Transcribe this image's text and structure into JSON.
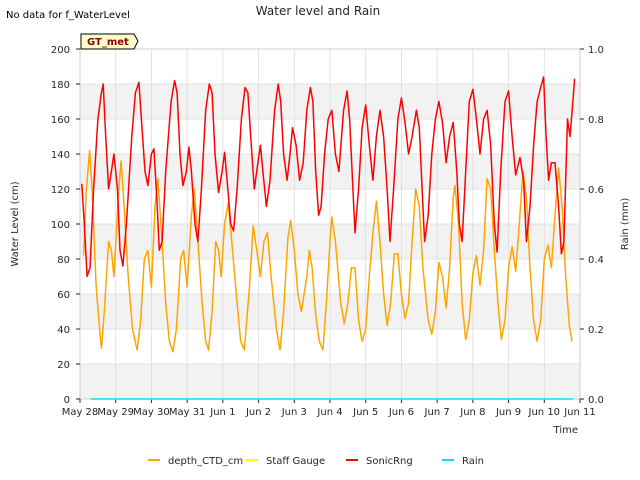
{
  "chart_data": {
    "type": "line",
    "title": "Water level and Rain",
    "annotation": "No data for f_WaterLevel",
    "badge": "GT_met",
    "xlabel": "Time",
    "ylabel_left": "Water Level (cm)",
    "ylabel_right": "Rain (mm)",
    "ylim_left": [
      0,
      200
    ],
    "ylim_right": [
      0.0,
      1.0
    ],
    "yticks_left": [
      "0",
      "20",
      "40",
      "60",
      "80",
      "100",
      "120",
      "140",
      "160",
      "180",
      "200"
    ],
    "yticks_right": [
      "0.0",
      "0.2",
      "0.4",
      "0.6",
      "0.8",
      "1.0"
    ],
    "xlim_days": [
      0,
      14
    ],
    "xticks": [
      "May 28",
      "May 29",
      "May 30",
      "May 31",
      "Jun 1",
      "Jun 2",
      "Jun 3",
      "Jun 4",
      "Jun 5",
      "Jun 6",
      "Jun 7",
      "Jun 8",
      "Jun 9",
      "Jun 10",
      "Jun 11"
    ],
    "grid": true,
    "legend_placement": "bottom",
    "series": [
      {
        "name": "depth_CTD_cm",
        "color": "#FFA500",
        "axis": "left",
        "points": [
          [
            0.1,
            82
          ],
          [
            0.18,
            120
          ],
          [
            0.27,
            142
          ],
          [
            0.34,
            120
          ],
          [
            0.45,
            65
          ],
          [
            0.55,
            40
          ],
          [
            0.6,
            29
          ],
          [
            0.68,
            50
          ],
          [
            0.8,
            90
          ],
          [
            0.88,
            85
          ],
          [
            0.95,
            70
          ],
          [
            1.08,
            118
          ],
          [
            1.15,
            136
          ],
          [
            1.22,
            115
          ],
          [
            1.35,
            70
          ],
          [
            1.47,
            40
          ],
          [
            1.6,
            28
          ],
          [
            1.7,
            45
          ],
          [
            1.8,
            80
          ],
          [
            1.9,
            85
          ],
          [
            2.0,
            64
          ],
          [
            2.1,
            110
          ],
          [
            2.18,
            126
          ],
          [
            2.3,
            90
          ],
          [
            2.4,
            55
          ],
          [
            2.5,
            33
          ],
          [
            2.6,
            27
          ],
          [
            2.7,
            40
          ],
          [
            2.82,
            80
          ],
          [
            2.9,
            85
          ],
          [
            3.0,
            64
          ],
          [
            3.12,
            105
          ],
          [
            3.2,
            120
          ],
          [
            3.3,
            90
          ],
          [
            3.42,
            55
          ],
          [
            3.52,
            33
          ],
          [
            3.6,
            28
          ],
          [
            3.7,
            50
          ],
          [
            3.8,
            90
          ],
          [
            3.88,
            85
          ],
          [
            3.95,
            70
          ],
          [
            4.05,
            100
          ],
          [
            4.15,
            112
          ],
          [
            4.25,
            90
          ],
          [
            4.4,
            55
          ],
          [
            4.5,
            33
          ],
          [
            4.6,
            28
          ],
          [
            4.75,
            65
          ],
          [
            4.85,
            99
          ],
          [
            4.95,
            85
          ],
          [
            5.05,
            70
          ],
          [
            5.15,
            90
          ],
          [
            5.25,
            95
          ],
          [
            5.35,
            70
          ],
          [
            5.5,
            40
          ],
          [
            5.6,
            28
          ],
          [
            5.7,
            50
          ],
          [
            5.82,
            92
          ],
          [
            5.9,
            102
          ],
          [
            6.0,
            85
          ],
          [
            6.1,
            60
          ],
          [
            6.2,
            50
          ],
          [
            6.35,
            70
          ],
          [
            6.42,
            85
          ],
          [
            6.5,
            75
          ],
          [
            6.6,
            48
          ],
          [
            6.7,
            33
          ],
          [
            6.8,
            28
          ],
          [
            6.9,
            55
          ],
          [
            7.0,
            90
          ],
          [
            7.05,
            104
          ],
          [
            7.15,
            90
          ],
          [
            7.3,
            55
          ],
          [
            7.4,
            43
          ],
          [
            7.5,
            55
          ],
          [
            7.6,
            75
          ],
          [
            7.7,
            75
          ],
          [
            7.8,
            45
          ],
          [
            7.9,
            33
          ],
          [
            8.0,
            40
          ],
          [
            8.1,
            70
          ],
          [
            8.2,
            95
          ],
          [
            8.3,
            113
          ],
          [
            8.4,
            90
          ],
          [
            8.5,
            60
          ],
          [
            8.6,
            42
          ],
          [
            8.7,
            55
          ],
          [
            8.8,
            83
          ],
          [
            8.9,
            83
          ],
          [
            9.0,
            60
          ],
          [
            9.1,
            46
          ],
          [
            9.2,
            55
          ],
          [
            9.3,
            90
          ],
          [
            9.4,
            120
          ],
          [
            9.5,
            110
          ],
          [
            9.6,
            75
          ],
          [
            9.75,
            45
          ],
          [
            9.85,
            37
          ],
          [
            9.95,
            50
          ],
          [
            10.05,
            78
          ],
          [
            10.15,
            70
          ],
          [
            10.25,
            52
          ],
          [
            10.35,
            75
          ],
          [
            10.45,
            115
          ],
          [
            10.5,
            122
          ],
          [
            10.6,
            100
          ],
          [
            10.7,
            55
          ],
          [
            10.8,
            34
          ],
          [
            10.9,
            45
          ],
          [
            11.0,
            72
          ],
          [
            11.1,
            82
          ],
          [
            11.2,
            65
          ],
          [
            11.3,
            85
          ],
          [
            11.4,
            126
          ],
          [
            11.5,
            120
          ],
          [
            11.6,
            85
          ],
          [
            11.7,
            55
          ],
          [
            11.8,
            34
          ],
          [
            11.9,
            45
          ],
          [
            12.0,
            75
          ],
          [
            12.1,
            87
          ],
          [
            12.2,
            73
          ],
          [
            12.3,
            100
          ],
          [
            12.4,
            130
          ],
          [
            12.5,
            115
          ],
          [
            12.6,
            75
          ],
          [
            12.7,
            45
          ],
          [
            12.8,
            33
          ],
          [
            12.9,
            45
          ],
          [
            13.0,
            80
          ],
          [
            13.1,
            88
          ],
          [
            13.2,
            75
          ],
          [
            13.3,
            105
          ],
          [
            13.4,
            132
          ],
          [
            13.5,
            110
          ],
          [
            13.6,
            70
          ],
          [
            13.7,
            42
          ],
          [
            13.78,
            33
          ]
        ]
      },
      {
        "name": "Staff Gauge",
        "color": "#FFFF00",
        "axis": "left",
        "points": []
      },
      {
        "name": "SonicRng",
        "color": "#FF0000",
        "axis": "left",
        "points": [
          [
            0.05,
            123
          ],
          [
            0.12,
            100
          ],
          [
            0.2,
            70
          ],
          [
            0.28,
            75
          ],
          [
            0.38,
            120
          ],
          [
            0.5,
            160
          ],
          [
            0.6,
            175
          ],
          [
            0.65,
            180
          ],
          [
            0.72,
            150
          ],
          [
            0.8,
            120
          ],
          [
            0.88,
            130
          ],
          [
            0.95,
            140
          ],
          [
            1.05,
            120
          ],
          [
            1.12,
            85
          ],
          [
            1.2,
            76
          ],
          [
            1.3,
            100
          ],
          [
            1.45,
            150
          ],
          [
            1.55,
            175
          ],
          [
            1.65,
            181
          ],
          [
            1.72,
            160
          ],
          [
            1.82,
            130
          ],
          [
            1.9,
            122
          ],
          [
            2.0,
            140
          ],
          [
            2.07,
            143
          ],
          [
            2.15,
            115
          ],
          [
            2.22,
            85
          ],
          [
            2.3,
            90
          ],
          [
            2.4,
            130
          ],
          [
            2.55,
            170
          ],
          [
            2.65,
            182
          ],
          [
            2.72,
            175
          ],
          [
            2.8,
            140
          ],
          [
            2.88,
            122
          ],
          [
            2.98,
            130
          ],
          [
            3.05,
            144
          ],
          [
            3.12,
            130
          ],
          [
            3.22,
            100
          ],
          [
            3.3,
            90
          ],
          [
            3.4,
            120
          ],
          [
            3.52,
            165
          ],
          [
            3.62,
            180
          ],
          [
            3.7,
            175
          ],
          [
            3.78,
            140
          ],
          [
            3.88,
            118
          ],
          [
            3.98,
            130
          ],
          [
            4.05,
            141
          ],
          [
            4.12,
            125
          ],
          [
            4.22,
            100
          ],
          [
            4.3,
            96
          ],
          [
            4.4,
            120
          ],
          [
            4.52,
            160
          ],
          [
            4.62,
            178
          ],
          [
            4.7,
            175
          ],
          [
            4.78,
            150
          ],
          [
            4.88,
            120
          ],
          [
            4.98,
            135
          ],
          [
            5.05,
            145
          ],
          [
            5.12,
            130
          ],
          [
            5.22,
            110
          ],
          [
            5.32,
            125
          ],
          [
            5.45,
            165
          ],
          [
            5.55,
            180
          ],
          [
            5.62,
            170
          ],
          [
            5.7,
            140
          ],
          [
            5.8,
            125
          ],
          [
            5.88,
            140
          ],
          [
            5.95,
            155
          ],
          [
            6.05,
            145
          ],
          [
            6.15,
            125
          ],
          [
            6.25,
            135
          ],
          [
            6.35,
            165
          ],
          [
            6.45,
            178
          ],
          [
            6.52,
            170
          ],
          [
            6.6,
            130
          ],
          [
            6.68,
            105
          ],
          [
            6.75,
            110
          ],
          [
            6.85,
            140
          ],
          [
            6.95,
            160
          ],
          [
            7.05,
            165
          ],
          [
            7.15,
            140
          ],
          [
            7.25,
            130
          ],
          [
            7.38,
            165
          ],
          [
            7.48,
            176
          ],
          [
            7.55,
            160
          ],
          [
            7.62,
            130
          ],
          [
            7.7,
            95
          ],
          [
            7.8,
            120
          ],
          [
            7.9,
            155
          ],
          [
            8.0,
            168
          ],
          [
            8.1,
            145
          ],
          [
            8.2,
            125
          ],
          [
            8.3,
            150
          ],
          [
            8.4,
            165
          ],
          [
            8.5,
            150
          ],
          [
            8.6,
            120
          ],
          [
            8.68,
            90
          ],
          [
            8.78,
            120
          ],
          [
            8.9,
            160
          ],
          [
            9.0,
            172
          ],
          [
            9.1,
            158
          ],
          [
            9.2,
            140
          ],
          [
            9.3,
            150
          ],
          [
            9.42,
            165
          ],
          [
            9.5,
            155
          ],
          [
            9.58,
            120
          ],
          [
            9.65,
            90
          ],
          [
            9.75,
            105
          ],
          [
            9.85,
            140
          ],
          [
            9.95,
            160
          ],
          [
            10.05,
            170
          ],
          [
            10.15,
            158
          ],
          [
            10.25,
            135
          ],
          [
            10.35,
            150
          ],
          [
            10.45,
            158
          ],
          [
            10.55,
            130
          ],
          [
            10.62,
            100
          ],
          [
            10.7,
            90
          ],
          [
            10.8,
            130
          ],
          [
            10.9,
            170
          ],
          [
            11.0,
            177
          ],
          [
            11.1,
            160
          ],
          [
            11.2,
            140
          ],
          [
            11.3,
            160
          ],
          [
            11.4,
            165
          ],
          [
            11.5,
            145
          ],
          [
            11.6,
            100
          ],
          [
            11.68,
            84
          ],
          [
            11.78,
            130
          ],
          [
            11.9,
            170
          ],
          [
            12.0,
            176
          ],
          [
            12.1,
            150
          ],
          [
            12.2,
            128
          ],
          [
            12.32,
            138
          ],
          [
            12.42,
            125
          ],
          [
            12.5,
            90
          ],
          [
            12.6,
            110
          ],
          [
            12.7,
            145
          ],
          [
            12.8,
            170
          ],
          [
            12.9,
            178
          ],
          [
            12.98,
            184
          ],
          [
            13.05,
            150
          ],
          [
            13.12,
            125
          ],
          [
            13.2,
            135
          ],
          [
            13.3,
            135
          ],
          [
            13.4,
            110
          ],
          [
            13.48,
            83
          ],
          [
            13.55,
            90
          ],
          [
            13.65,
            160
          ],
          [
            13.72,
            150
          ],
          [
            13.8,
            170
          ],
          [
            13.85,
            183
          ]
        ]
      },
      {
        "name": "Rain",
        "color": "#00E5EE",
        "axis": "right",
        "points": [
          [
            0.3,
            0.0
          ],
          [
            13.8,
            0.0
          ]
        ]
      }
    ]
  }
}
